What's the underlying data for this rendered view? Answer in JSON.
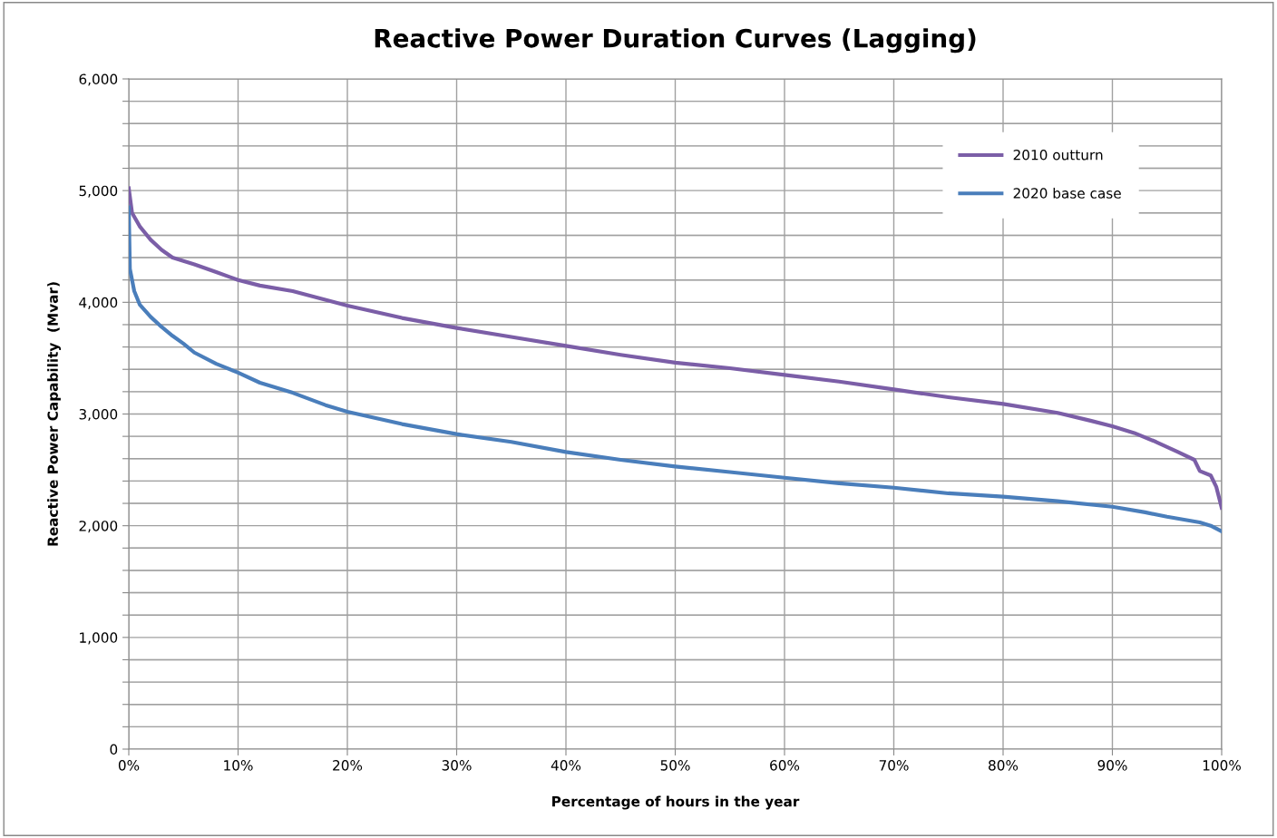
{
  "chart_data": {
    "type": "line",
    "title": "Reactive Power Duration Curves (Lagging)",
    "xlabel": "Percentage of hours in the year",
    "ylabel": "Reactive Power Capability  (Mvar)",
    "xlim": [
      0,
      100
    ],
    "ylim": [
      0,
      6000
    ],
    "xticks": [
      {
        "value": 0,
        "label": "0%"
      },
      {
        "value": 10,
        "label": "10%"
      },
      {
        "value": 20,
        "label": "20%"
      },
      {
        "value": 30,
        "label": "30%"
      },
      {
        "value": 40,
        "label": "40%"
      },
      {
        "value": 50,
        "label": "50%"
      },
      {
        "value": 60,
        "label": "60%"
      },
      {
        "value": 70,
        "label": "70%"
      },
      {
        "value": 80,
        "label": "80%"
      },
      {
        "value": 90,
        "label": "90%"
      },
      {
        "value": 100,
        "label": "100%"
      }
    ],
    "yticks": [
      {
        "value": 0,
        "label": "0"
      },
      {
        "value": 200,
        "label": null
      },
      {
        "value": 400,
        "label": null
      },
      {
        "value": 600,
        "label": null
      },
      {
        "value": 800,
        "label": null
      },
      {
        "value": 1000,
        "label": "1,000"
      },
      {
        "value": 1200,
        "label": null
      },
      {
        "value": 1400,
        "label": null
      },
      {
        "value": 1600,
        "label": null
      },
      {
        "value": 1800,
        "label": null
      },
      {
        "value": 2000,
        "label": "2,000"
      },
      {
        "value": 2200,
        "label": null
      },
      {
        "value": 2400,
        "label": null
      },
      {
        "value": 2600,
        "label": null
      },
      {
        "value": 2800,
        "label": null
      },
      {
        "value": 3000,
        "label": "3,000"
      },
      {
        "value": 3200,
        "label": null
      },
      {
        "value": 3400,
        "label": null
      },
      {
        "value": 3600,
        "label": null
      },
      {
        "value": 3800,
        "label": null
      },
      {
        "value": 4000,
        "label": "4,000"
      },
      {
        "value": 4200,
        "label": null
      },
      {
        "value": 4400,
        "label": null
      },
      {
        "value": 4600,
        "label": null
      },
      {
        "value": 4800,
        "label": null
      },
      {
        "value": 5000,
        "label": "5,000"
      },
      {
        "value": 5200,
        "label": null
      },
      {
        "value": 5400,
        "label": null
      },
      {
        "value": 5600,
        "label": null
      },
      {
        "value": 5800,
        "label": null
      },
      {
        "value": 6000,
        "label": "6,000"
      }
    ],
    "grid": true,
    "legend": "top right",
    "marker": "none",
    "line_style": "solid",
    "series": [
      {
        "name": "2010 outturn",
        "color": "#7b5ea7",
        "x": [
          0,
          0.3,
          1,
          2,
          3,
          4,
          6,
          8,
          10,
          12,
          15,
          20,
          25,
          30,
          35,
          40,
          45,
          50,
          55,
          60,
          65,
          70,
          75,
          80,
          85,
          88,
          90,
          92,
          94,
          96,
          97.5,
          98,
          99,
          99.5,
          100
        ],
        "values": [
          5020,
          4800,
          4680,
          4560,
          4470,
          4400,
          4340,
          4270,
          4200,
          4150,
          4100,
          3970,
          3860,
          3770,
          3690,
          3610,
          3530,
          3460,
          3410,
          3350,
          3290,
          3220,
          3150,
          3090,
          3010,
          2940,
          2890,
          2830,
          2750,
          2660,
          2590,
          2490,
          2450,
          2350,
          2160
        ]
      },
      {
        "name": "2020 base case",
        "color": "#4a7ebb",
        "x": [
          0,
          0.1,
          0.5,
          1,
          2,
          3,
          4,
          5,
          6,
          8,
          10,
          12,
          15,
          18,
          20,
          25,
          30,
          35,
          40,
          45,
          50,
          55,
          60,
          65,
          70,
          75,
          80,
          85,
          90,
          93,
          95,
          98,
          99,
          100
        ],
        "values": [
          4850,
          4300,
          4100,
          3980,
          3870,
          3780,
          3700,
          3630,
          3550,
          3450,
          3370,
          3280,
          3190,
          3080,
          3020,
          2910,
          2820,
          2750,
          2660,
          2590,
          2530,
          2480,
          2430,
          2380,
          2340,
          2290,
          2260,
          2220,
          2170,
          2120,
          2080,
          2030,
          2000,
          1950
        ]
      }
    ]
  }
}
